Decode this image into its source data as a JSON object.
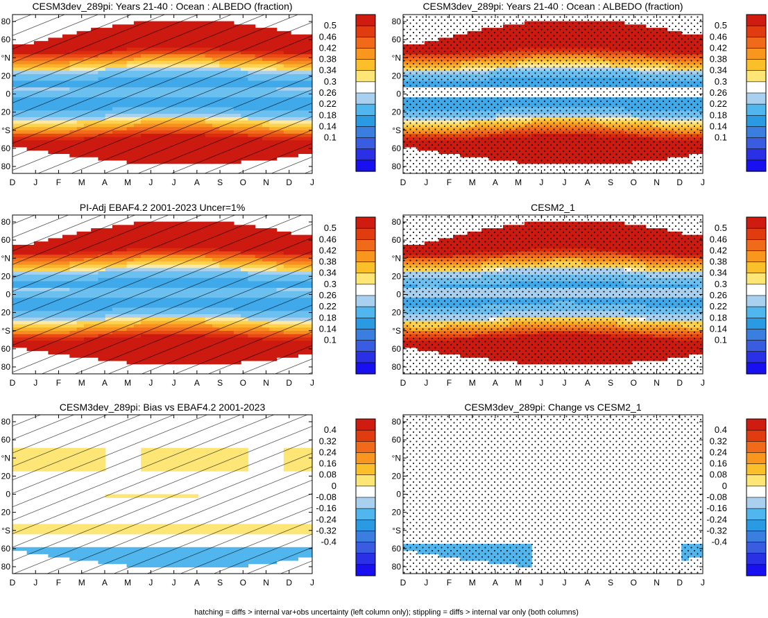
{
  "figure": {
    "caption": "hatching = diffs > internal var+obs uncertainty (left column only); stippling = diffs > internal var only (both columns)"
  },
  "axes": {
    "months": [
      "D",
      "J",
      "F",
      "M",
      "A",
      "M",
      "J",
      "J",
      "A",
      "S",
      "O",
      "N",
      "D",
      "J"
    ],
    "lat_ticks": [
      "80",
      "60",
      "°N",
      "20",
      "0",
      "20",
      "°S",
      "60",
      "80"
    ]
  },
  "colorbars": {
    "absolute": {
      "labels": [
        "0.5",
        "0.46",
        "0.42",
        "0.38",
        "0.34",
        "0.3",
        "0.26",
        "0.22",
        "0.18",
        "0.14",
        "0.1"
      ],
      "colors": [
        "#d01c10",
        "#e03c10",
        "#f06a1a",
        "#f8961e",
        "#fbbf2a",
        "#fde676",
        "#ffffff",
        "#a9d1ef",
        "#52b6ee",
        "#2a9ae2",
        "#3a7fe0",
        "#3a5ce0",
        "#2a30e6",
        "#1810f0"
      ]
    },
    "difference": {
      "labels": [
        "0.4",
        "0.32",
        "0.24",
        "0.16",
        "0.08",
        "0",
        "-0.08",
        "-0.16",
        "-0.24",
        "-0.32",
        "-0.4"
      ],
      "colors": [
        "#d01c10",
        "#e03c10",
        "#f06a1a",
        "#f8961e",
        "#fbbf2a",
        "#fde676",
        "#ffffff",
        "#a9d1ef",
        "#52b6ee",
        "#2a9ae2",
        "#3a7fe0",
        "#3a5ce0",
        "#2a30e6",
        "#1810f0"
      ]
    }
  },
  "chart_data": [
    {
      "type": "heatmap",
      "title": "CESM3dev_289pi: Years 21-40 : Ocean : ALBEDO (fraction)",
      "x": [
        "D",
        "J",
        "F",
        "M",
        "A",
        "M",
        "J",
        "J",
        "A",
        "S",
        "O",
        "N",
        "D",
        "J"
      ],
      "ylim": [
        -90,
        90
      ],
      "colorbar": "absolute",
      "overlay": "hatching"
    },
    {
      "type": "heatmap",
      "title": "CESM3dev_289pi: Years 21-40 : Ocean : ALBEDO (fraction)",
      "x": [
        "D",
        "J",
        "F",
        "M",
        "A",
        "M",
        "J",
        "J",
        "A",
        "S",
        "O",
        "N",
        "D",
        "J"
      ],
      "ylim": [
        -90,
        90
      ],
      "colorbar": "absolute",
      "overlay": "stippling"
    },
    {
      "type": "heatmap",
      "title": "PI-Adj EBAF4.2 2001-2023 Uncer=1%",
      "x": [
        "D",
        "J",
        "F",
        "M",
        "A",
        "M",
        "J",
        "J",
        "A",
        "S",
        "O",
        "N",
        "D",
        "J"
      ],
      "ylim": [
        -90,
        90
      ],
      "colorbar": "absolute",
      "overlay": "hatching"
    },
    {
      "type": "heatmap",
      "title": "CESM2_1",
      "x": [
        "D",
        "J",
        "F",
        "M",
        "A",
        "M",
        "J",
        "J",
        "A",
        "S",
        "O",
        "N",
        "D",
        "J"
      ],
      "ylim": [
        -90,
        90
      ],
      "colorbar": "absolute",
      "overlay": "stippling"
    },
    {
      "type": "heatmap",
      "title": "CESM3dev_289pi: Bias vs EBAF4.2 2001-2023",
      "x": [
        "D",
        "J",
        "F",
        "M",
        "A",
        "M",
        "J",
        "J",
        "A",
        "S",
        "O",
        "N",
        "D",
        "J"
      ],
      "ylim": [
        -90,
        90
      ],
      "colorbar": "difference",
      "overlay": "hatching"
    },
    {
      "type": "heatmap",
      "title": "CESM3dev_289pi: Change vs CESM2_1",
      "x": [
        "D",
        "J",
        "F",
        "M",
        "A",
        "M",
        "J",
        "J",
        "A",
        "S",
        "O",
        "N",
        "D",
        "J"
      ],
      "ylim": [
        -90,
        90
      ],
      "colorbar": "difference",
      "overlay": "stippling"
    }
  ]
}
